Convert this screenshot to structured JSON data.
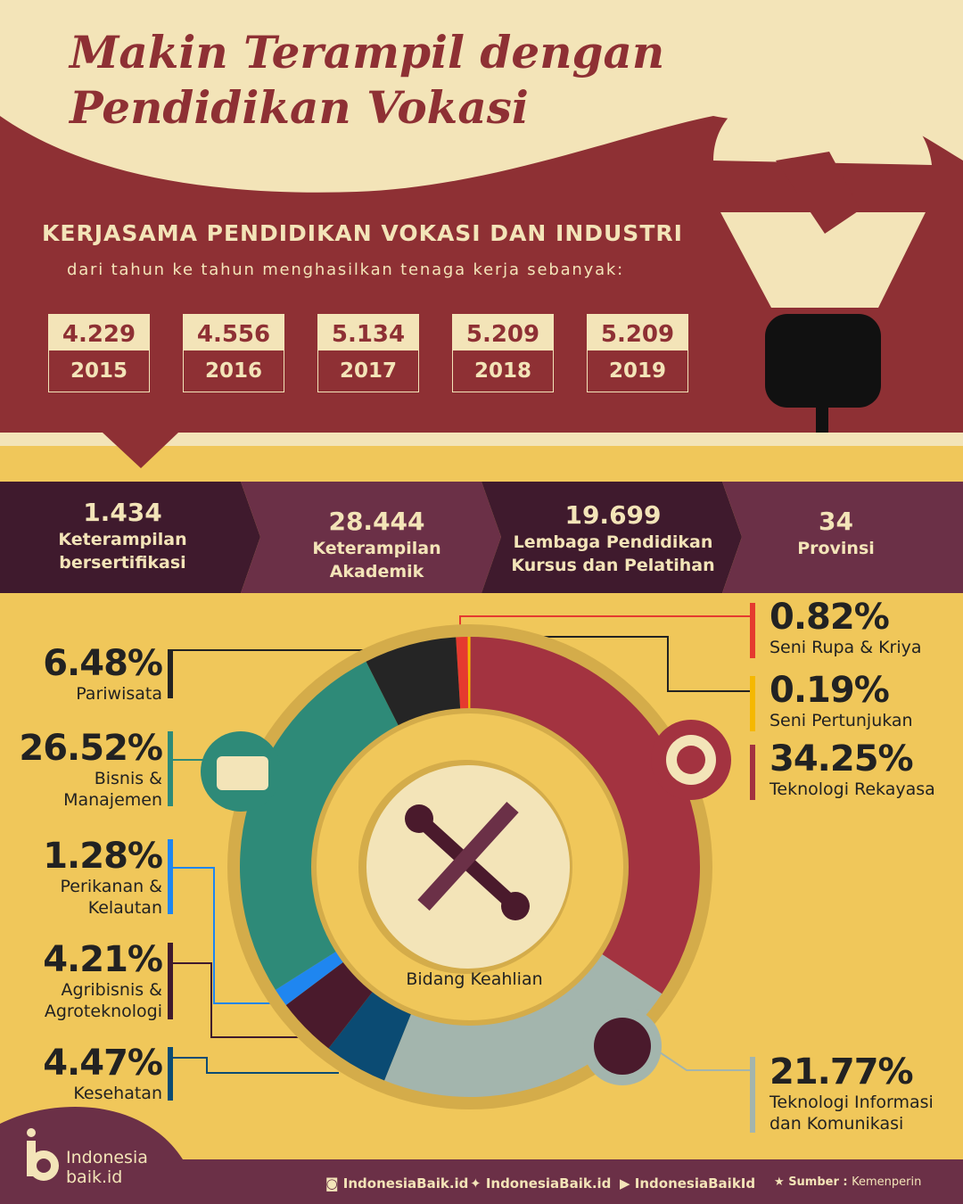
{
  "header": {
    "title_line1": "Makin Terampil dengan",
    "title_line2": "Pendidikan Vokasi",
    "subtitle": "KERJASAMA PENDIDIKAN VOKASI DAN INDUSTRI",
    "caption": "dari tahun ke tahun menghasilkan tenaga kerja sebanyak:"
  },
  "years": [
    {
      "value": "4.229",
      "year": "2015"
    },
    {
      "value": "4.556",
      "year": "2016"
    },
    {
      "value": "5.134",
      "year": "2017"
    },
    {
      "value": "5.209",
      "year": "2018"
    },
    {
      "value": "5.209",
      "year": "2019"
    }
  ],
  "stats": [
    {
      "number": "1.434",
      "line1": "Keterampilan",
      "line2": "bersertifikasi"
    },
    {
      "number": "28.444",
      "line1": "Keterampilan",
      "line2": "Akademik"
    },
    {
      "number": "19.699",
      "line1": "Lembaga Pendidikan",
      "line2": "Kursus dan Pelatihan"
    },
    {
      "number": "34",
      "line1": "Provinsi",
      "line2": ""
    }
  ],
  "chart_data": {
    "type": "pie",
    "center_label": "Bidang Keahlian",
    "direction": "clockwise from top",
    "slices": [
      {
        "label": "Seni Rupa & Kriya",
        "value": 0.82,
        "display": "0.82%",
        "color": "#e53a2f"
      },
      {
        "label": "Seni Pertunjukan",
        "value": 0.19,
        "display": "0.19%",
        "color": "#f5b800"
      },
      {
        "label": "Teknologi Rekayasa",
        "value": 34.25,
        "display": "34.25%",
        "color": "#a33340"
      },
      {
        "label": "Teknologi Informasi dan Komunikasi",
        "value": 21.77,
        "display": "21.77%",
        "color": "#a3b5ad"
      },
      {
        "label": "Kesehatan",
        "value": 4.47,
        "display": "4.47%",
        "color": "#0b4b73"
      },
      {
        "label": "Agribisnis & Agroteknologi",
        "value": 4.21,
        "display": "4.21%",
        "color": "#4a1a2c"
      },
      {
        "label": "Perikanan & Kelautan",
        "value": 1.28,
        "display": "1.28%",
        "color": "#1f86f0"
      },
      {
        "label": "Bisnis & Manajemen",
        "value": 26.52,
        "display": "26.52%",
        "color": "#2e8a78"
      },
      {
        "label": "Pariwisata",
        "value": 6.48,
        "display": "6.48%",
        "color": "#252525"
      }
    ],
    "label_lines": {
      "pariwisata": [
        "Pariwisata"
      ],
      "bisnis": [
        "Bisnis &",
        "Manajemen"
      ],
      "perikanan": [
        "Perikanan &",
        "Kelautan"
      ],
      "agri": [
        "Agribisnis &",
        "Agroteknologi"
      ],
      "kesehatan": [
        "Kesehatan"
      ],
      "seni_rupa": [
        "Seni Rupa & Kriya"
      ],
      "seni_pertunjukan": [
        "Seni Pertunjukan"
      ],
      "rekayasa": [
        "Teknologi Rekayasa"
      ],
      "tik": [
        "Teknologi Informasi",
        "dan Komunikasi"
      ]
    }
  },
  "footer": {
    "logo_line1": "Indonesia",
    "logo_line2": "baik.id",
    "instagram": "IndonesiaBaik.id",
    "twitter": "IndonesiaBaik.id",
    "youtube": "IndonesiaBaikId",
    "source_label": "Sumber :",
    "source": "Kemenperin"
  }
}
